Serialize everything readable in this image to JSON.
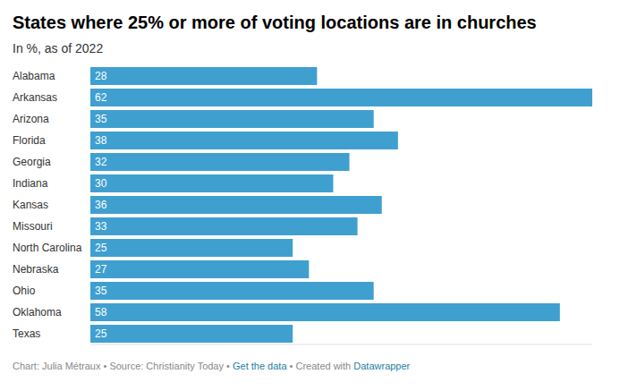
{
  "chart_data": {
    "type": "bar",
    "orientation": "horizontal",
    "title": "States where 25% or more of voting locations are in churches",
    "subtitle": "In %, as of 2022",
    "categories": [
      "Alabama",
      "Arkansas",
      "Arizona",
      "Florida",
      "Georgia",
      "Indiana",
      "Kansas",
      "Missouri",
      "North Carolina",
      "Nebraska",
      "Ohio",
      "Oklahoma",
      "Texas"
    ],
    "values": [
      28,
      62,
      35,
      38,
      32,
      30,
      36,
      33,
      25,
      27,
      35,
      58,
      25
    ],
    "color": "#3fa0d0",
    "xlim": [
      0,
      62
    ],
    "data_labels": true,
    "tick_labels": "y",
    "grid": false,
    "footer": {
      "author": "Chart: Julia Métraux",
      "separator": "•",
      "source": "Source: Christianity Today",
      "get_data": "Get the data",
      "created_with": "Created with",
      "tool": "Datawrapper"
    }
  }
}
